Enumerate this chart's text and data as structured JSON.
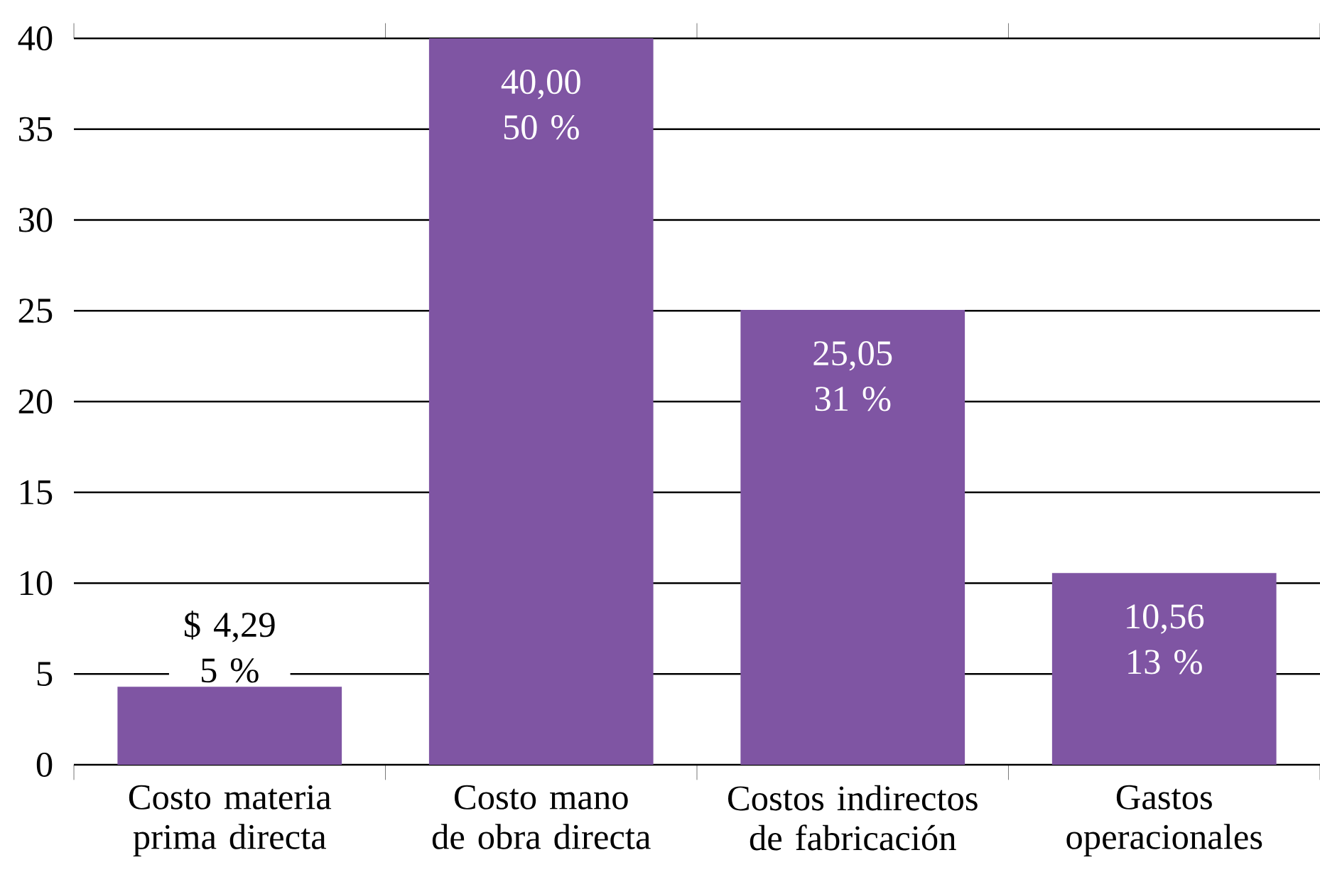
{
  "chart_data": {
    "type": "bar",
    "categories": [
      "Costo materia prima directa",
      "Costo mano de obra directa",
      "Costos indirectos de fabricación",
      "Gastos operacionales"
    ],
    "values": [
      4.29,
      40.0,
      25.05,
      10.56
    ],
    "value_labels": [
      "$ 4,29 5 %",
      "40,00 50 %",
      "25,05 31 %",
      "10,56 13 %"
    ],
    "color": "#7f55a3",
    "ylim": [
      0,
      40
    ],
    "yticks": [
      0,
      5,
      10,
      15,
      20,
      25,
      30,
      35,
      40
    ],
    "grid": "y"
  }
}
